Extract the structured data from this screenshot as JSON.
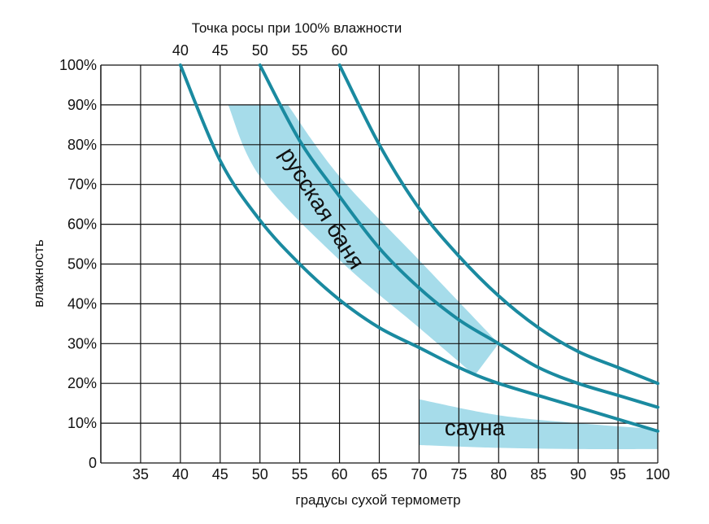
{
  "chart_data": {
    "type": "line",
    "title": "Точка росы при 100% влажности",
    "xlabel": "градусы сухой термометр",
    "ylabel": "влажность",
    "xlim": [
      30,
      100
    ],
    "ylim": [
      0,
      100
    ],
    "x_ticks": [
      {
        "value": 35,
        "label": "35"
      },
      {
        "value": 40,
        "label": "40"
      },
      {
        "value": 45,
        "label": "45"
      },
      {
        "value": 50,
        "label": "50"
      },
      {
        "value": 55,
        "label": "55"
      },
      {
        "value": 60,
        "label": "60"
      },
      {
        "value": 65,
        "label": "65"
      },
      {
        "value": 70,
        "label": "70"
      },
      {
        "value": 75,
        "label": "75"
      },
      {
        "value": 80,
        "label": "80"
      },
      {
        "value": 85,
        "label": "85"
      },
      {
        "value": 90,
        "label": "90"
      },
      {
        "value": 95,
        "label": "95"
      },
      {
        "value": 100,
        "label": "100"
      }
    ],
    "y_ticks": [
      {
        "value": 0,
        "label": "0"
      },
      {
        "value": 10,
        "label": "10%"
      },
      {
        "value": 20,
        "label": "20%"
      },
      {
        "value": 30,
        "label": "30%"
      },
      {
        "value": 40,
        "label": "40%"
      },
      {
        "value": 50,
        "label": "50%"
      },
      {
        "value": 60,
        "label": "60%"
      },
      {
        "value": 70,
        "label": "70%"
      },
      {
        "value": 80,
        "label": "80%"
      },
      {
        "value": 90,
        "label": "90%"
      },
      {
        "value": 100,
        "label": "100%"
      }
    ],
    "top_ticks": [
      {
        "value": 40,
        "label": "40"
      },
      {
        "value": 45,
        "label": "45"
      },
      {
        "value": 50,
        "label": "50"
      },
      {
        "value": 55,
        "label": "55"
      },
      {
        "value": 60,
        "label": "60"
      }
    ],
    "grid": true,
    "series": [
      {
        "dew_point": 40,
        "color": "#1a8aa0",
        "x": [
          40,
          45,
          50,
          55,
          60,
          65,
          70,
          75,
          80,
          90,
          100
        ],
        "y": [
          100,
          76,
          61,
          50,
          41,
          34,
          29,
          24,
          20,
          14,
          8
        ]
      },
      {
        "dew_point": 50,
        "color": "#1a8aa0",
        "x": [
          50,
          55,
          60,
          65,
          70,
          75,
          80,
          85,
          90,
          95,
          100
        ],
        "y": [
          100,
          81,
          67,
          54,
          44,
          36,
          30,
          24,
          20,
          17,
          14
        ]
      },
      {
        "dew_point": 60,
        "color": "#1a8aa0",
        "x": [
          60,
          65,
          70,
          75,
          80,
          85,
          90,
          95,
          100
        ],
        "y": [
          100,
          80,
          64,
          52,
          42,
          34,
          28,
          24,
          20
        ]
      }
    ],
    "regions": [
      {
        "label": "русская баня",
        "color": "#a6dcea",
        "upper": [
          [
            53.5,
            90
          ],
          [
            60,
            72
          ],
          [
            70,
            51
          ],
          [
            80,
            30
          ]
        ],
        "lower": [
          [
            77,
            22
          ],
          [
            70,
            34
          ],
          [
            60,
            51
          ],
          [
            50,
            72
          ],
          [
            46,
            90
          ]
        ],
        "label_pos": [
          57,
          63
        ],
        "label_angle": 58
      },
      {
        "label": "сауна",
        "color": "#a6dcea",
        "upper": [
          [
            70,
            16
          ],
          [
            80,
            12
          ],
          [
            90,
            10
          ],
          [
            100,
            8.5
          ]
        ],
        "lower": [
          [
            100,
            3.5
          ],
          [
            90,
            3.5
          ],
          [
            80,
            3.8
          ],
          [
            70,
            4.5
          ]
        ],
        "label_pos": [
          77,
          7
        ],
        "label_angle": 0
      }
    ]
  }
}
